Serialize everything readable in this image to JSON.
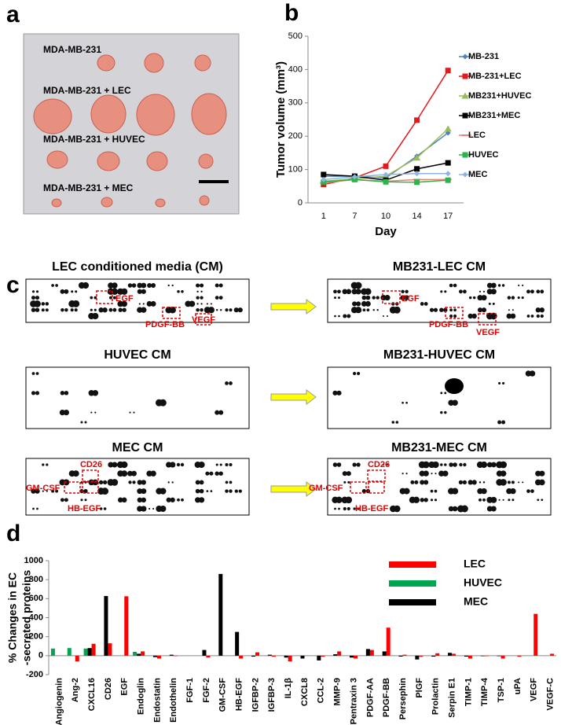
{
  "panel_labels": [
    "a",
    "b",
    "c",
    "d"
  ],
  "photo": {
    "labels": [
      "MDA-MB-231",
      "MDA-MB-231 + LEC",
      "MDA-MB-231 + HUVEC",
      "MDA-MB-231 + MEC"
    ]
  },
  "blots": [
    {
      "title": "LEC conditioned media (CM)",
      "annotations": [
        "EGF",
        "PDGF-BB",
        "VEGF"
      ]
    },
    {
      "title": "MB231-LEC CM",
      "annotations": [
        "EGF",
        "PDGF-BB",
        "VEGF"
      ]
    },
    {
      "title": "HUVEC CM",
      "annotations": []
    },
    {
      "title": "MB231-HUVEC CM",
      "annotations": []
    },
    {
      "title": "MEC CM",
      "annotations": [
        "CD26",
        "GM-CSF",
        "HB-EGF"
      ]
    },
    {
      "title": "MB231-MEC CM",
      "annotations": [
        "CD26",
        "GM-CSF",
        "HB-EGF"
      ]
    }
  ],
  "chart_data": [
    {
      "type": "line",
      "xlabel": "Day",
      "ylabel": "Tumor volume (mm³)",
      "categories": [
        "1",
        "7",
        "10",
        "14",
        "17"
      ],
      "ylim": [
        0,
        500
      ],
      "yticks": [
        0,
        100,
        200,
        300,
        400,
        500
      ],
      "series": [
        {
          "name": "MB-231",
          "color": "#4f81bd",
          "marker": "diamond",
          "values": [
            80,
            80,
            75,
            140,
            210
          ]
        },
        {
          "name": "MB-231+LEC",
          "color": "#e31a1c",
          "marker": "square",
          "values": [
            55,
            75,
            110,
            248,
            397
          ]
        },
        {
          "name": "MB231+HUVEC",
          "color": "#9bbb59",
          "marker": "triangle",
          "values": [
            65,
            72,
            80,
            135,
            222
          ]
        },
        {
          "name": "MB231+MEC",
          "color": "#000000",
          "marker": "square",
          "values": [
            85,
            80,
            68,
            102,
            120
          ]
        },
        {
          "name": "LEC",
          "color": "#f08070",
          "marker": "dash",
          "values": [
            60,
            70,
            65,
            70,
            70
          ]
        },
        {
          "name": "HUVEC",
          "color": "#2db34a",
          "marker": "square",
          "values": [
            63,
            70,
            63,
            62,
            68
          ]
        },
        {
          "name": "MEC",
          "color": "#8eb4e3",
          "marker": "diamond",
          "values": [
            70,
            78,
            85,
            88,
            88
          ]
        }
      ]
    },
    {
      "type": "bar",
      "ylabel": [
        "% Changes in EC",
        "-secreted proteins"
      ],
      "categories": [
        "Angiogenin",
        "Ang-2",
        "CXCL16",
        "CD26",
        "EGF",
        "Endoglin",
        "Endostatin",
        "Endothelin",
        "FGF-1",
        "FGF-2",
        "GM-CSF",
        "HB-EGF",
        "IGFBP-2",
        "IGFBP-3",
        "IL-1β",
        "CXCL8",
        "CCL-2",
        "MMP-9",
        "Pentraxin 3",
        "PDGF-AA",
        "PDGF-BB",
        "Persephin",
        "PlGF",
        "Prolactin",
        "Serpin E1",
        "TIMP-1",
        "TIMP-4",
        "TSP-1",
        "uPA",
        "VEGF",
        "VEGF-C"
      ],
      "ylim": [
        -200,
        1000
      ],
      "yticks": [
        -200,
        0,
        200,
        400,
        600,
        800,
        1000
      ],
      "series": [
        {
          "name": "LEC",
          "color": "#ff0000",
          "values": [
            0,
            -60,
            125,
            130,
            625,
            45,
            -30,
            -5,
            0,
            -20,
            0,
            -30,
            35,
            -10,
            -60,
            0,
            -10,
            45,
            -30,
            60,
            295,
            10,
            -10,
            25,
            20,
            -30,
            -5,
            -30,
            -10,
            440,
            20
          ]
        },
        {
          "name": "HUVEC",
          "color": "#00a550",
          "values": [
            75,
            80,
            75,
            0,
            0,
            40,
            0,
            0,
            0,
            0,
            0,
            0,
            0,
            0,
            0,
            0,
            0,
            0,
            0,
            0,
            0,
            0,
            0,
            0,
            0,
            0,
            0,
            0,
            0,
            0,
            0
          ]
        },
        {
          "name": "MEC",
          "color": "#000000",
          "values": [
            0,
            0,
            80,
            628,
            0,
            20,
            -15,
            10,
            0,
            60,
            860,
            250,
            -10,
            10,
            -20,
            -30,
            -50,
            15,
            -20,
            70,
            45,
            -10,
            -40,
            -10,
            30,
            -10,
            -5,
            -5,
            0,
            0,
            0
          ]
        }
      ]
    }
  ]
}
